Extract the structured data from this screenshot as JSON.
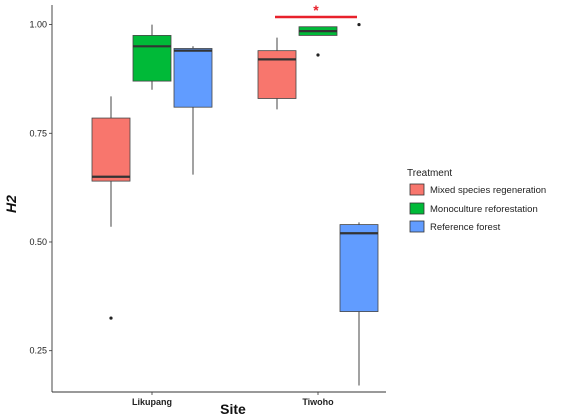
{
  "chart_data": {
    "type": "box",
    "title": "",
    "xlabel": "Site",
    "ylabel": "H2",
    "ylim": [
      0.155,
      1.045
    ],
    "yticks": [
      0.25,
      0.5,
      0.75,
      1.0
    ],
    "ytick_labels": [
      "0.25",
      "0.50",
      "0.75",
      "1.00"
    ],
    "categories": [
      "Likupang",
      "Tiwoho"
    ],
    "legend": {
      "title": "Treatment",
      "position": "right"
    },
    "grid": false,
    "series": [
      {
        "name": "Mixed species regeneration",
        "color": "#F8766D",
        "boxes": [
          {
            "category": "Likupang",
            "whisker_low": 0.535,
            "q1": 0.64,
            "median": 0.65,
            "q3": 0.785,
            "whisker_high": 0.835,
            "outliers": [
              0.325
            ]
          },
          {
            "category": "Tiwoho",
            "whisker_low": 0.805,
            "q1": 0.83,
            "median": 0.92,
            "q3": 0.94,
            "whisker_high": 0.97,
            "outliers": []
          }
        ]
      },
      {
        "name": "Monoculture reforestation",
        "color": "#00BA38",
        "boxes": [
          {
            "category": "Likupang",
            "whisker_low": 0.85,
            "q1": 0.87,
            "median": 0.95,
            "q3": 0.975,
            "whisker_high": 1.0,
            "outliers": []
          },
          {
            "category": "Tiwoho",
            "whisker_low": 0.975,
            "q1": 0.975,
            "median": 0.985,
            "q3": 0.995,
            "whisker_high": 0.995,
            "outliers": [
              0.93
            ]
          }
        ]
      },
      {
        "name": "Reference forest",
        "color": "#619CFF",
        "boxes": [
          {
            "category": "Likupang",
            "whisker_low": 0.655,
            "q1": 0.81,
            "median": 0.94,
            "q3": 0.945,
            "whisker_high": 0.95,
            "outliers": []
          },
          {
            "category": "Tiwoho",
            "whisker_low": 0.17,
            "q1": 0.34,
            "median": 0.52,
            "q3": 0.54,
            "whisker_high": 0.545,
            "outliers": [
              1.0
            ]
          }
        ]
      }
    ],
    "annotations": [
      {
        "text": "*",
        "category": "Tiwoho",
        "color": "#E8212B"
      }
    ]
  }
}
